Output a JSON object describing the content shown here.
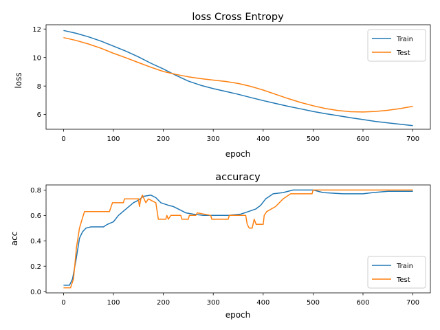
{
  "chart_data": [
    {
      "type": "line",
      "title": "loss Cross Entropy",
      "xlabel": "epoch",
      "ylabel": "loss",
      "xlim": [
        -35,
        735
      ],
      "ylim": [
        4.97,
        12.3
      ],
      "xticks": [
        0,
        100,
        200,
        300,
        400,
        500,
        600,
        700
      ],
      "yticks": [
        6,
        8,
        10,
        12
      ],
      "grid": false,
      "legend_position": "top-right",
      "series": [
        {
          "name": "Train",
          "color": "#1f77b4",
          "points": [
            [
              0,
              11.9
            ],
            [
              25,
              11.7
            ],
            [
              50,
              11.45
            ],
            [
              75,
              11.15
            ],
            [
              100,
              10.8
            ],
            [
              125,
              10.45
            ],
            [
              150,
              10.05
            ],
            [
              175,
              9.6
            ],
            [
              200,
              9.2
            ],
            [
              225,
              8.75
            ],
            [
              250,
              8.35
            ],
            [
              275,
              8.05
            ],
            [
              300,
              7.82
            ],
            [
              325,
              7.62
            ],
            [
              350,
              7.42
            ],
            [
              375,
              7.2
            ],
            [
              400,
              6.98
            ],
            [
              425,
              6.78
            ],
            [
              450,
              6.58
            ],
            [
              475,
              6.4
            ],
            [
              500,
              6.22
            ],
            [
              525,
              6.06
            ],
            [
              550,
              5.92
            ],
            [
              575,
              5.78
            ],
            [
              600,
              5.65
            ],
            [
              625,
              5.52
            ],
            [
              650,
              5.42
            ],
            [
              675,
              5.32
            ],
            [
              700,
              5.22
            ]
          ]
        },
        {
          "name": "Test",
          "color": "#ff7f0e",
          "points": [
            [
              0,
              11.4
            ],
            [
              25,
              11.2
            ],
            [
              50,
              10.95
            ],
            [
              75,
              10.65
            ],
            [
              100,
              10.3
            ],
            [
              125,
              9.98
            ],
            [
              150,
              9.65
            ],
            [
              175,
              9.32
            ],
            [
              200,
              9.02
            ],
            [
              225,
              8.82
            ],
            [
              250,
              8.65
            ],
            [
              275,
              8.52
            ],
            [
              300,
              8.42
            ],
            [
              325,
              8.32
            ],
            [
              350,
              8.18
            ],
            [
              375,
              7.98
            ],
            [
              400,
              7.72
            ],
            [
              425,
              7.42
            ],
            [
              450,
              7.12
            ],
            [
              475,
              6.85
            ],
            [
              500,
              6.62
            ],
            [
              525,
              6.42
            ],
            [
              550,
              6.28
            ],
            [
              575,
              6.2
            ],
            [
              600,
              6.18
            ],
            [
              625,
              6.22
            ],
            [
              650,
              6.3
            ],
            [
              675,
              6.42
            ],
            [
              700,
              6.58
            ]
          ]
        }
      ]
    },
    {
      "type": "line",
      "title": "accuracy",
      "xlabel": "epoch",
      "ylabel": "acc",
      "xlim": [
        -35,
        735
      ],
      "ylim": [
        -0.01,
        0.84
      ],
      "xticks": [
        0,
        100,
        200,
        300,
        400,
        500,
        600,
        700
      ],
      "yticks": [
        0.0,
        0.2,
        0.4,
        0.6,
        0.8
      ],
      "yticklabels": [
        "0.0",
        "0.2",
        "0.4",
        "0.6",
        "0.8"
      ],
      "grid": false,
      "legend_position": "bottom-right",
      "series": [
        {
          "name": "Train",
          "color": "#1f77b4",
          "points": [
            [
              0,
              0.05
            ],
            [
              12,
              0.05
            ],
            [
              18,
              0.1
            ],
            [
              25,
              0.25
            ],
            [
              32,
              0.42
            ],
            [
              38,
              0.47
            ],
            [
              45,
              0.5
            ],
            [
              55,
              0.51
            ],
            [
              80,
              0.51
            ],
            [
              88,
              0.53
            ],
            [
              100,
              0.55
            ],
            [
              110,
              0.6
            ],
            [
              125,
              0.65
            ],
            [
              140,
              0.7
            ],
            [
              150,
              0.72
            ],
            [
              160,
              0.75
            ],
            [
              175,
              0.76
            ],
            [
              185,
              0.74
            ],
            [
              195,
              0.7
            ],
            [
              210,
              0.68
            ],
            [
              220,
              0.67
            ],
            [
              230,
              0.65
            ],
            [
              245,
              0.62
            ],
            [
              260,
              0.61
            ],
            [
              280,
              0.6
            ],
            [
              300,
              0.6
            ],
            [
              330,
              0.6
            ],
            [
              355,
              0.61
            ],
            [
              370,
              0.63
            ],
            [
              385,
              0.65
            ],
            [
              395,
              0.68
            ],
            [
              405,
              0.73
            ],
            [
              420,
              0.77
            ],
            [
              440,
              0.78
            ],
            [
              460,
              0.8
            ],
            [
              480,
              0.8
            ],
            [
              500,
              0.8
            ],
            [
              520,
              0.78
            ],
            [
              560,
              0.77
            ],
            [
              600,
              0.77
            ],
            [
              620,
              0.78
            ],
            [
              650,
              0.79
            ],
            [
              700,
              0.79
            ]
          ]
        },
        {
          "name": "Test",
          "color": "#ff7f0e",
          "points": [
            [
              0,
              0.03
            ],
            [
              14,
              0.03
            ],
            [
              20,
              0.1
            ],
            [
              26,
              0.35
            ],
            [
              32,
              0.5
            ],
            [
              38,
              0.58
            ],
            [
              42,
              0.63
            ],
            [
              92,
              0.63
            ],
            [
              98,
              0.7
            ],
            [
              120,
              0.7
            ],
            [
              122,
              0.73
            ],
            [
              150,
              0.73
            ],
            [
              152,
              0.67
            ],
            [
              155,
              0.73
            ],
            [
              158,
              0.76
            ],
            [
              165,
              0.7
            ],
            [
              170,
              0.73
            ],
            [
              185,
              0.7
            ],
            [
              190,
              0.57
            ],
            [
              205,
              0.57
            ],
            [
              207,
              0.6
            ],
            [
              210,
              0.57
            ],
            [
              215,
              0.6
            ],
            [
              235,
              0.6
            ],
            [
              237,
              0.57
            ],
            [
              250,
              0.57
            ],
            [
              252,
              0.6
            ],
            [
              265,
              0.6
            ],
            [
              268,
              0.62
            ],
            [
              295,
              0.6
            ],
            [
              297,
              0.57
            ],
            [
              330,
              0.57
            ],
            [
              332,
              0.6
            ],
            [
              365,
              0.6
            ],
            [
              368,
              0.53
            ],
            [
              372,
              0.5
            ],
            [
              378,
              0.5
            ],
            [
              382,
              0.57
            ],
            [
              386,
              0.53
            ],
            [
              400,
              0.53
            ],
            [
              402,
              0.6
            ],
            [
              407,
              0.63
            ],
            [
              425,
              0.67
            ],
            [
              440,
              0.73
            ],
            [
              455,
              0.77
            ],
            [
              498,
              0.77
            ],
            [
              500,
              0.8
            ],
            [
              700,
              0.8
            ]
          ]
        }
      ]
    }
  ]
}
